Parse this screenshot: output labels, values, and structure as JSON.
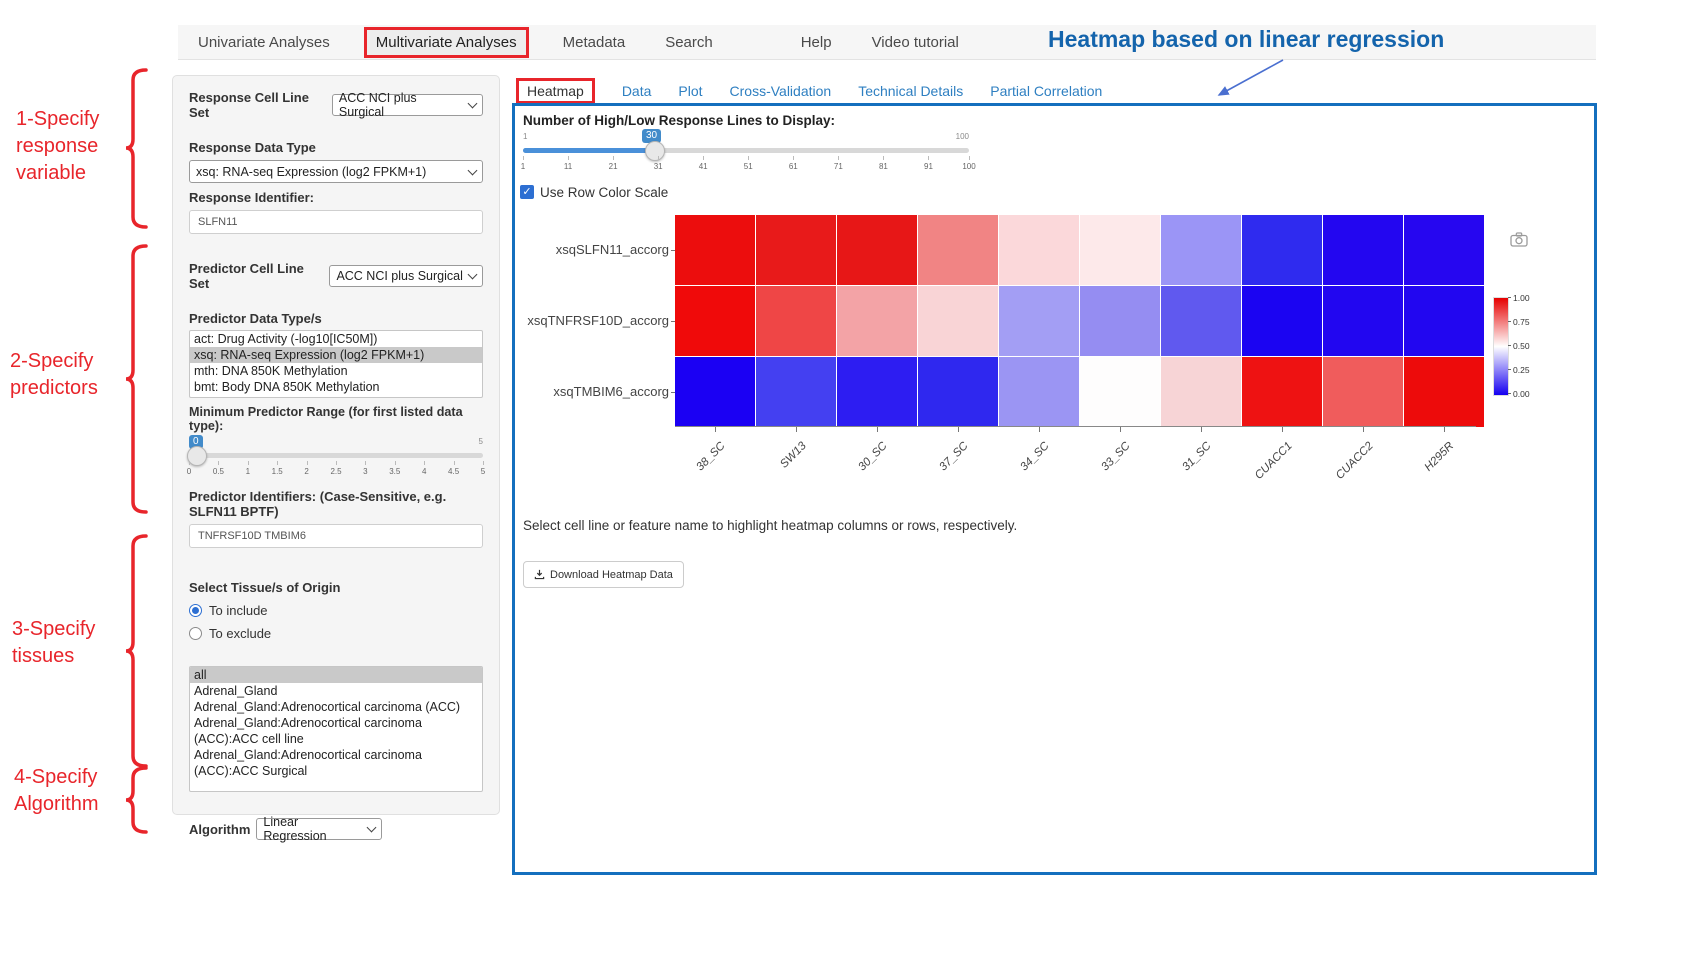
{
  "annotations": {
    "heading": "Heatmap based on linear regression",
    "steps": [
      {
        "lines": [
          "1-Specify",
          "response",
          "variable"
        ]
      },
      {
        "lines": [
          "2-Specify",
          "predictors"
        ]
      },
      {
        "lines": [
          "3-Specify",
          "tissues"
        ]
      },
      {
        "lines": [
          "4-Specify",
          "Algorithm"
        ]
      }
    ]
  },
  "nav": {
    "items": [
      "Univariate Analyses",
      "Multivariate Analyses",
      "Metadata",
      "Search",
      "Help",
      "Video tutorial"
    ],
    "active_index": 1
  },
  "sidebar": {
    "response_cell_line_set": {
      "label": "Response Cell Line Set",
      "value": "ACC NCI plus Surgical"
    },
    "response_data_type": {
      "label": "Response Data Type",
      "value": "xsq: RNA-seq Expression (log2 FPKM+1)"
    },
    "response_identifier": {
      "label": "Response Identifier:",
      "value": "SLFN11"
    },
    "predictor_cell_line_set": {
      "label": "Predictor Cell Line Set",
      "value": "ACC NCI plus Surgical"
    },
    "predictor_data_types": {
      "label": "Predictor Data Type/s",
      "options": [
        "act: Drug Activity (-log10[IC50M])",
        "xsq: RNA-seq Expression (log2 FPKM+1)",
        "mth: DNA 850K Methylation",
        "bmt: Body DNA 850K Methylation"
      ],
      "selected_index": 1
    },
    "min_predictor_range": {
      "label": "Minimum Predictor Range (for first listed data type):",
      "value": "0",
      "max_label": "5",
      "ticks": [
        "0",
        "0.5",
        "1",
        "1.5",
        "2",
        "2.5",
        "3",
        "3.5",
        "4",
        "4.5",
        "5"
      ]
    },
    "predictor_identifiers": {
      "label": "Predictor Identifiers: (Case-Sensitive, e.g. SLFN11 BPTF)",
      "value": "TNFRSF10D TMBIM6"
    },
    "tissue": {
      "label": "Select Tissue/s of Origin",
      "radios": [
        "To include",
        "To exclude"
      ],
      "selected_radio": 0,
      "options": [
        "all",
        "Adrenal_Gland",
        "Adrenal_Gland:Adrenocortical carcinoma (ACC)",
        "Adrenal_Gland:Adrenocortical carcinoma (ACC):ACC cell line",
        "Adrenal_Gland:Adrenocortical carcinoma (ACC):ACC Surgical"
      ],
      "selected_index": 0
    },
    "algorithm": {
      "label": "Algorithm",
      "value": "Linear Regression"
    }
  },
  "main": {
    "tabs": [
      "Heatmap",
      "Data",
      "Plot",
      "Cross-Validation",
      "Technical Details",
      "Partial Correlation"
    ],
    "active_tab_index": 0,
    "lines_slider": {
      "label": "Number of High/Low Response Lines to Display:",
      "min_label": "1",
      "max_label": "100",
      "value": "30",
      "ticks": [
        "1",
        "11",
        "21",
        "31",
        "41",
        "51",
        "61",
        "71",
        "81",
        "91",
        "100"
      ]
    },
    "row_color_scale": {
      "label": "Use Row Color Scale",
      "checked": true,
      "check_glyph": "✓"
    },
    "hint": "Select cell line or feature name to highlight heatmap columns or rows, respectively.",
    "download_button": "Download Heatmap Data"
  },
  "chart_data": {
    "type": "heatmap",
    "x": [
      "38_SC",
      "SW13",
      "30_SC",
      "37_SC",
      "34_SC",
      "33_SC",
      "31_SC",
      "CUACC1",
      "CUACC2",
      "H295R"
    ],
    "y": [
      "xsqSLFN11_accorg",
      "xsqTNFRSF10D_accorg",
      "xsqTMBIM6_accorg"
    ],
    "values": [
      [
        0.98,
        0.95,
        0.94,
        0.8,
        0.57,
        0.55,
        0.31,
        0.06,
        0.03,
        0.03
      ],
      [
        0.99,
        0.86,
        0.7,
        0.58,
        0.31,
        0.28,
        0.19,
        0.02,
        0.02,
        0.02
      ],
      [
        0.02,
        0.13,
        0.06,
        0.08,
        0.3,
        0.5,
        0.61,
        0.96,
        0.81,
        0.97
      ]
    ],
    "cell_colors": [
      [
        "#ec0d0d",
        "#e81a1a",
        "#e71717",
        "#f18484",
        "#fbd8da",
        "#fde9ea",
        "#9b95f6",
        "#2f2bef",
        "#2306f0",
        "#2606f0"
      ],
      [
        "#f00a0a",
        "#ef4646",
        "#f3a3a6",
        "#f9d4d6",
        "#a39ef4",
        "#958df2",
        "#6059ef",
        "#1b04f2",
        "#2206f0",
        "#2206f0"
      ],
      [
        "#1b00f3",
        "#4440f1",
        "#2d1df2",
        "#2f28ef",
        "#9b95f3",
        "#fefdfd",
        "#f7d4d6",
        "#ee1212",
        "#f05c5c",
        "#ed0b0b"
      ]
    ],
    "colorscale": "blue-white-red",
    "colorbar_ticks": [
      "1.00",
      "0.75",
      "0.50",
      "0.25",
      "0.00"
    ],
    "legend_position": "right",
    "accent_colors": {
      "panel_border": "#146fbe",
      "tab_link": "#2e7fc1",
      "annotation_red": "#e8252b",
      "heading_blue": "#1464ac"
    }
  }
}
